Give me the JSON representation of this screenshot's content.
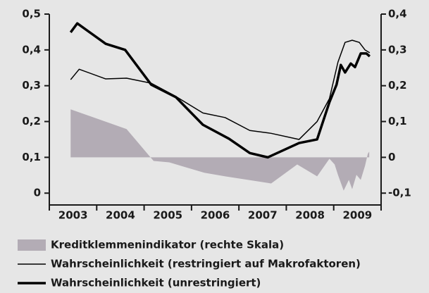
{
  "chart_data": {
    "type": "line",
    "categories": [
      "2003",
      "2004",
      "2005",
      "2006",
      "2007",
      "2008",
      "2009"
    ],
    "xlim": [
      2003,
      2010
    ],
    "xticks": [
      2003,
      2004,
      2005,
      2006,
      2007,
      2008,
      2009,
      2010
    ],
    "ylim": [
      -0.033,
      0.5
    ],
    "yticks": [
      0,
      {
        "value": 0.1,
        "label": "0,1"
      },
      {
        "value": 0.2,
        "label": "0,2"
      },
      {
        "value": 0.3,
        "label": "0,3"
      },
      {
        "value": 0.4,
        "label": "0,4"
      },
      {
        "value": 0.5,
        "label": "0,5"
      }
    ],
    "y2lim": [
      -0.133,
      0.4
    ],
    "y2ticks": [
      {
        "value": -0.1,
        "label": "-0,1"
      },
      0,
      {
        "value": 0.1,
        "label": "0,1"
      },
      {
        "value": 0.2,
        "label": "0,2"
      },
      {
        "value": 0.3,
        "label": "0,3"
      },
      {
        "value": 0.4,
        "label": "0,4"
      }
    ],
    "series": [
      {
        "name": "Kreditklemmenindikator (rechte Skala)",
        "kind": "area",
        "axis": "y2",
        "color": "#b3acb5",
        "x": [
          2003.45,
          2004.63,
          2005.2,
          2005.53,
          2006.27,
          2006.71,
          2007.68,
          2008.23,
          2008.65,
          2008.91,
          2009.02,
          2009.09,
          2009.21,
          2009.32,
          2009.39,
          2009.48,
          2009.57,
          2009.66,
          2009.72,
          2009.75
        ],
        "values": [
          0.134,
          0.079,
          -0.01,
          -0.014,
          -0.043,
          -0.053,
          -0.073,
          -0.02,
          -0.053,
          -0.004,
          -0.02,
          -0.049,
          -0.093,
          -0.063,
          -0.089,
          -0.049,
          -0.063,
          -0.024,
          0.01,
          0.016
        ]
      },
      {
        "name": "Wahrscheinlichkeit (restringiert auf Makrofaktoren)",
        "kind": "line",
        "width": 1.5,
        "color": "#000000",
        "x": [
          2003.45,
          2003.63,
          2004.19,
          2004.63,
          2005.15,
          2005.67,
          2006.24,
          2006.71,
          2007.23,
          2007.68,
          2008.27,
          2008.65,
          2008.91,
          2009.09,
          2009.24,
          2009.39,
          2009.54,
          2009.66,
          2009.76
        ],
        "values": [
          0.317,
          0.346,
          0.319,
          0.321,
          0.307,
          0.27,
          0.224,
          0.211,
          0.175,
          0.167,
          0.15,
          0.2,
          0.264,
          0.366,
          0.421,
          0.427,
          0.421,
          0.4,
          0.392
        ]
      },
      {
        "name": "Wahrscheinlichkeit (unrestringiert)",
        "kind": "line",
        "width": 3.5,
        "color": "#000000",
        "x": [
          2003.45,
          2003.59,
          2004.19,
          2004.6,
          2005.15,
          2005.67,
          2006.24,
          2006.79,
          2007.23,
          2007.61,
          2008.27,
          2008.65,
          2008.91,
          2009.06,
          2009.15,
          2009.24,
          2009.36,
          2009.45,
          2009.57,
          2009.69,
          2009.76
        ],
        "values": [
          0.449,
          0.474,
          0.417,
          0.4,
          0.303,
          0.268,
          0.191,
          0.152,
          0.112,
          0.1,
          0.14,
          0.15,
          0.254,
          0.303,
          0.358,
          0.337,
          0.362,
          0.352,
          0.39,
          0.39,
          0.382
        ]
      }
    ]
  }
}
